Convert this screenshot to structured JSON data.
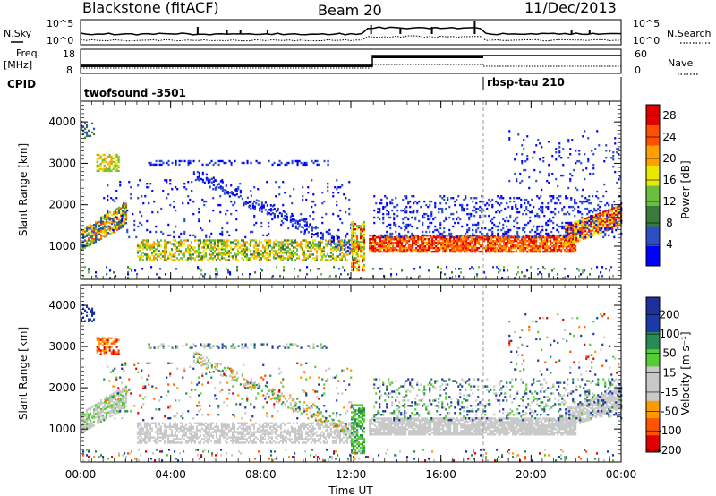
{
  "header": {
    "station": "Blackstone (fitACF)",
    "beam": "Beam 20",
    "date": "11/Dec/2013"
  },
  "top_panels": {
    "nsky_label": "N.Sky",
    "nsearch_label": "N.Search",
    "noise_ticks": [
      "10^5",
      "10^0"
    ],
    "freq_label": "Freq.",
    "freq_unit": "[MHz]",
    "freq_ticks": [
      "18",
      "8"
    ],
    "nave_label": "Nave",
    "nave_ticks": [
      "60",
      "0"
    ],
    "cpid_label": "CPID",
    "cpid_1": "twofsound -3501",
    "cpid_2": "rbsp-tau 210"
  },
  "colors": {
    "power": [
      "#0000ff",
      "#2b4fc3",
      "#3a7a3a",
      "#6bbf3f",
      "#e8e800",
      "#ffa000",
      "#ff5000",
      "#e00000"
    ],
    "velocity": [
      "#e00000",
      "#ff5500",
      "#ff9900",
      "#c8c8c8",
      "#c8c8c8",
      "#55cc33",
      "#2a8a55",
      "#1a3aaa",
      "#1e2e9a"
    ]
  },
  "chart_data": [
    {
      "type": "heatmap",
      "panel": "power",
      "ylabel": "Slant Range [km]",
      "xlabel": "",
      "x_ticks": [
        "00:00",
        "04:00",
        "08:00",
        "12:00",
        "16:00",
        "20:00",
        "00:00"
      ],
      "y_ticks": [
        "1000",
        "2000",
        "3000",
        "4000"
      ],
      "ylim": [
        200,
        4500
      ],
      "xlim_hours": [
        0,
        24
      ],
      "colorbar_label": "Power [dB]",
      "colorbar_ticks": [
        "4",
        "8",
        "12",
        "16",
        "20",
        "24",
        "28"
      ],
      "colorbar_range": [
        0,
        30
      ]
    },
    {
      "type": "heatmap",
      "panel": "velocity",
      "ylabel": "Slant Range [km]",
      "xlabel": "Time UT",
      "x_ticks": [
        "00:00",
        "04:00",
        "08:00",
        "12:00",
        "16:00",
        "20:00",
        "00:00"
      ],
      "y_ticks": [
        "1000",
        "2000",
        "3000",
        "4000"
      ],
      "ylim": [
        200,
        4500
      ],
      "xlim_hours": [
        0,
        24
      ],
      "colorbar_label": "Velocity [m s⁻¹]",
      "colorbar_ticks": [
        "200",
        "100",
        "50",
        "15",
        "-15",
        "-50",
        "-100",
        "-200"
      ],
      "colorbar_range": [
        -250,
        250
      ]
    }
  ]
}
